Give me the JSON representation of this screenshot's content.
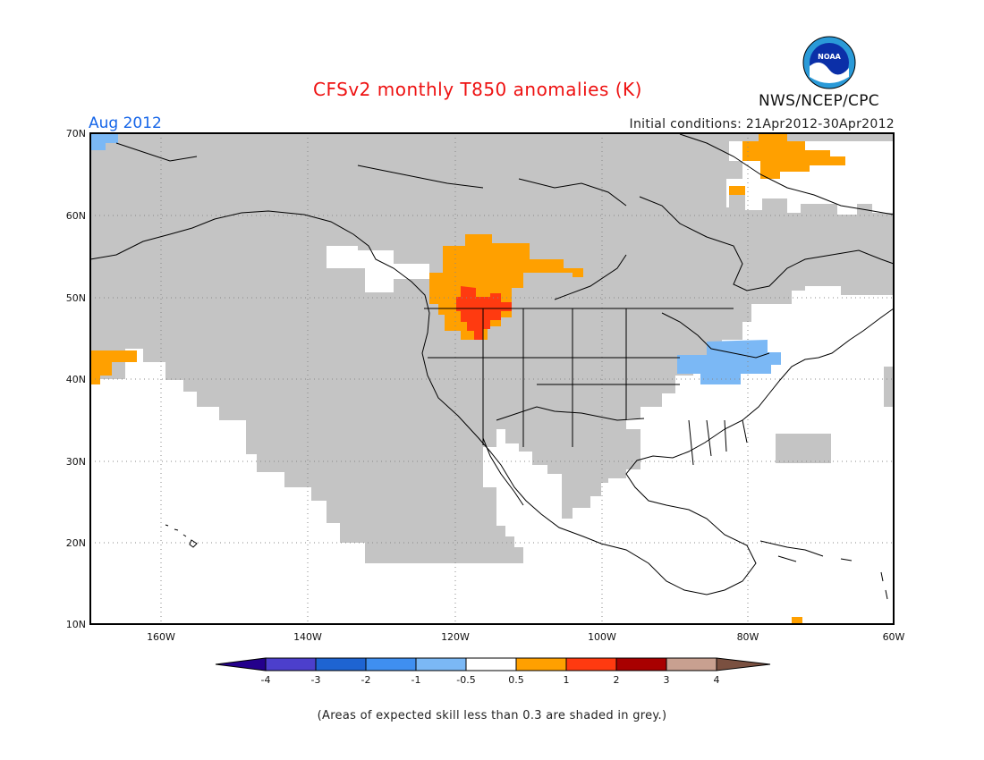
{
  "title": "CFSv2 monthly T850 anomalies (K)",
  "month_label": "Aug 2012",
  "initial_conditions": "Initial conditions: 21Apr2012-30Apr2012",
  "org": "NWS/NCEP/CPC",
  "logo_text": "NOAA",
  "footer": "(Areas of expected skill less than 0.3 are shaded in grey.)",
  "lat_labels": [
    "70N",
    "60N",
    "50N",
    "40N",
    "30N",
    "20N",
    "10N"
  ],
  "lon_labels": [
    "160W",
    "140W",
    "120W",
    "100W",
    "80W",
    "60W"
  ],
  "colorbar": {
    "ticks": [
      "-4",
      "-3",
      "-2",
      "-1",
      "-0.5",
      "0.5",
      "1",
      "2",
      "3",
      "4"
    ],
    "colors": [
      "#24008c",
      "#4c3fcc",
      "#1e64d2",
      "#3f8ff0",
      "#7bb8f5",
      "#ffffff",
      "#ffa000",
      "#ff3a10",
      "#a80000",
      "#c8a090",
      "#7a5040"
    ]
  },
  "skill_grey": "#c4c4c4"
}
